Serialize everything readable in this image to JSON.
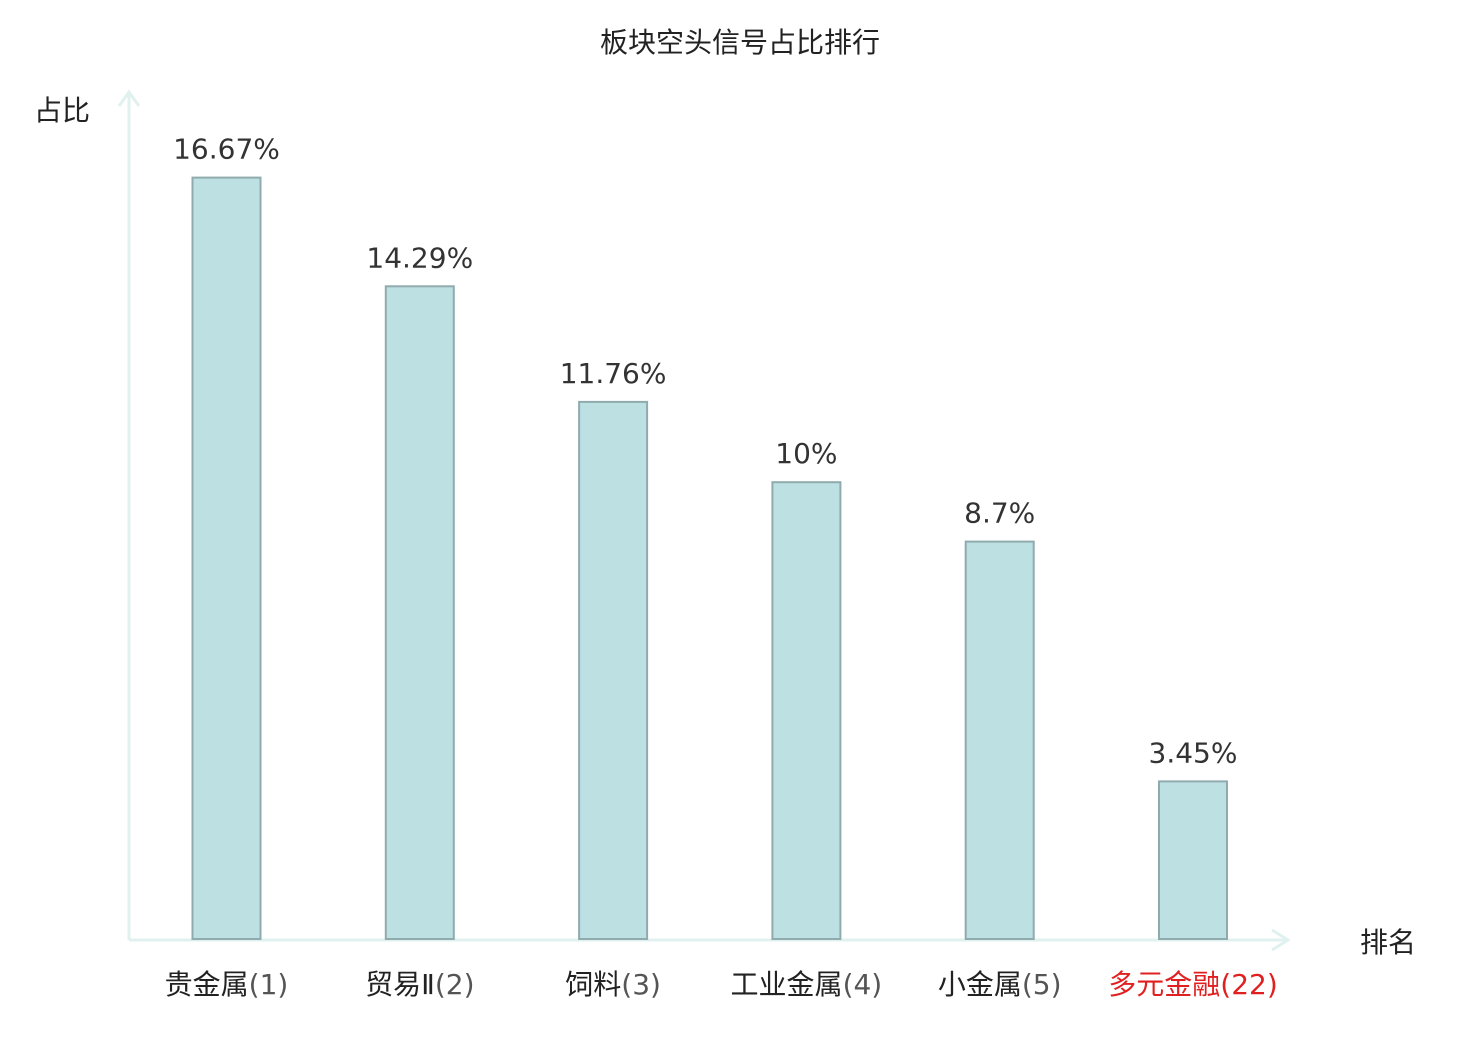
{
  "chart_data": {
    "type": "bar",
    "title": "板块空头信号占比排行",
    "xlabel": "排名",
    "ylabel": "占比",
    "categories": [
      {
        "name": "贵金属",
        "rank": "(1)",
        "highlight": false
      },
      {
        "name": "贸易Ⅱ",
        "rank": "(2)",
        "highlight": false
      },
      {
        "name": "饲料",
        "rank": "(3)",
        "highlight": false
      },
      {
        "name": "工业金属",
        "rank": "(4)",
        "highlight": false
      },
      {
        "name": "小金属",
        "rank": "(5)",
        "highlight": false
      },
      {
        "name": "多元金融",
        "rank": "(22)",
        "highlight": true
      }
    ],
    "values": [
      16.67,
      14.29,
      11.76,
      10,
      8.7,
      3.45
    ],
    "value_labels": [
      "16.67%",
      "14.29%",
      "11.76%",
      "10%",
      "8.7%",
      "3.45%"
    ],
    "ylim": [
      0,
      18.5
    ],
    "grid": false,
    "legend": "none"
  },
  "colors": {
    "bar_fill": "#bde0e3",
    "bar_stroke": "#8fabad",
    "axis": "#e0f1ef",
    "text": "#333333",
    "label_dark": "#222222",
    "rank_gray": "#555555",
    "highlight": "#e02020"
  }
}
